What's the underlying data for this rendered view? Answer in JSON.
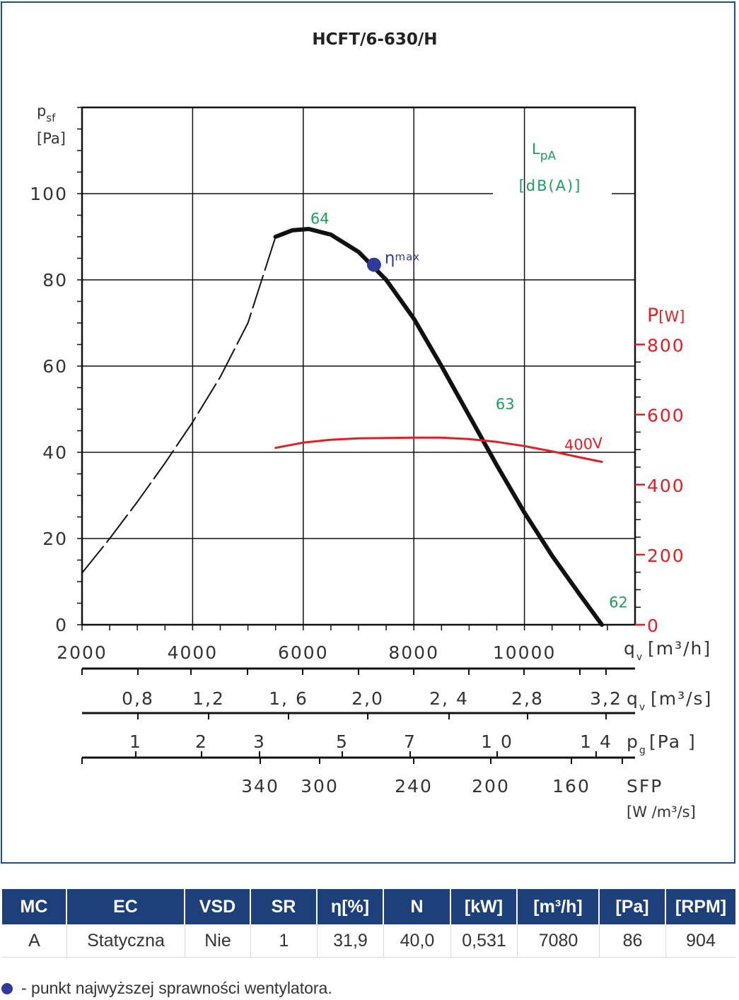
{
  "chart_data": {
    "type": "line",
    "title": "HCFT/6-630/H",
    "y_axis": {
      "label": "p",
      "label_sub": "sf",
      "unit": "[Pa]",
      "ticks": [
        0,
        20,
        40,
        60,
        80,
        100
      ],
      "range": [
        0,
        120
      ]
    },
    "x_axis": {
      "label": "q",
      "label_sub": "v",
      "unit": "[m³/h]",
      "ticks": [
        "2000",
        "4000",
        "6000",
        "8000",
        "10000"
      ],
      "range": [
        2000,
        12000
      ]
    },
    "y2_axis": {
      "label": "P",
      "unit": "[W]",
      "ticks": [
        "0",
        "200",
        "400",
        "600",
        "800"
      ],
      "range": [
        0,
        800
      ]
    },
    "lpa_label": "L",
    "lpa_sub": "pA",
    "lpa_unit": "[dB(A)]",
    "secondary_scales": [
      {
        "name": "q",
        "name_sub": "v",
        "unit": "[m³/s]",
        "labels": [
          "0,8",
          "1,2",
          "1, 6",
          "2,0",
          "2, 4",
          "2,8",
          "3,2"
        ],
        "values": [
          0.8,
          1.2,
          1.6,
          2.0,
          2.4,
          2.8,
          3.2
        ]
      },
      {
        "name": "p",
        "name_sub": "g",
        "unit": "[Pa ]",
        "labels": [
          "1",
          "2",
          "3",
          "5",
          "7",
          "1 0",
          "1 4"
        ],
        "values": [
          1,
          2,
          3,
          5,
          7,
          10,
          14
        ]
      },
      {
        "name": "SFP",
        "unit": "[W /m³/s]",
        "labels": [
          "340",
          "300",
          "240",
          "200",
          "160"
        ],
        "values": [
          340,
          300,
          240,
          200,
          160
        ]
      }
    ],
    "series": [
      {
        "kind": "pressure-dashed",
        "color": "#111111",
        "points": [
          [
            2000,
            12
          ],
          [
            2500,
            20
          ],
          [
            3000,
            28.5
          ],
          [
            3500,
            37.5
          ],
          [
            4000,
            47
          ],
          [
            4500,
            57.5
          ],
          [
            5000,
            70
          ],
          [
            5500,
            90
          ]
        ]
      },
      {
        "kind": "pressure",
        "color": "#111111",
        "points": [
          [
            5500,
            90
          ],
          [
            5800,
            91.5
          ],
          [
            6100,
            91.8
          ],
          [
            6500,
            90.5
          ],
          [
            7000,
            86.5
          ],
          [
            7500,
            80
          ],
          [
            8000,
            71
          ],
          [
            8500,
            60
          ],
          [
            9000,
            48.5
          ],
          [
            9500,
            37
          ],
          [
            10000,
            26
          ],
          [
            10500,
            16
          ],
          [
            11000,
            7
          ],
          [
            11400,
            0
          ]
        ]
      },
      {
        "name": "400V",
        "kind": "power",
        "color": "#e31e24",
        "points": [
          [
            5500,
            505
          ],
          [
            6000,
            520
          ],
          [
            6500,
            528
          ],
          [
            7000,
            532
          ],
          [
            7500,
            533
          ],
          [
            8000,
            534
          ],
          [
            8500,
            534
          ],
          [
            9000,
            530
          ],
          [
            9500,
            522
          ],
          [
            10000,
            510
          ],
          [
            10500,
            495
          ],
          [
            11000,
            478
          ],
          [
            11400,
            465
          ]
        ]
      }
    ],
    "noise_labels": [
      {
        "text": "64",
        "x": 6300,
        "y": 93
      },
      {
        "text": "63",
        "x": 9650,
        "y": 50
      },
      {
        "text": "62",
        "x": 11700,
        "y": 4
      }
    ],
    "eta_max": {
      "label": "η",
      "label_sub": "max",
      "x": 7280,
      "y": 83.5,
      "color": "#2f3a9c"
    },
    "grid": true
  },
  "table": {
    "headers": [
      "MC",
      "EC",
      "VSD",
      "SR",
      "η[%]",
      "N",
      "[kW]",
      "[m³/h]",
      "[Pa]",
      "[RPM]"
    ],
    "row": [
      "A",
      "Statyczna",
      "Nie",
      "1",
      "31,9",
      "40,0",
      "0,531",
      "7080",
      "86",
      "904"
    ]
  },
  "footnote": "- punkt najwyższej sprawności wentylatora."
}
